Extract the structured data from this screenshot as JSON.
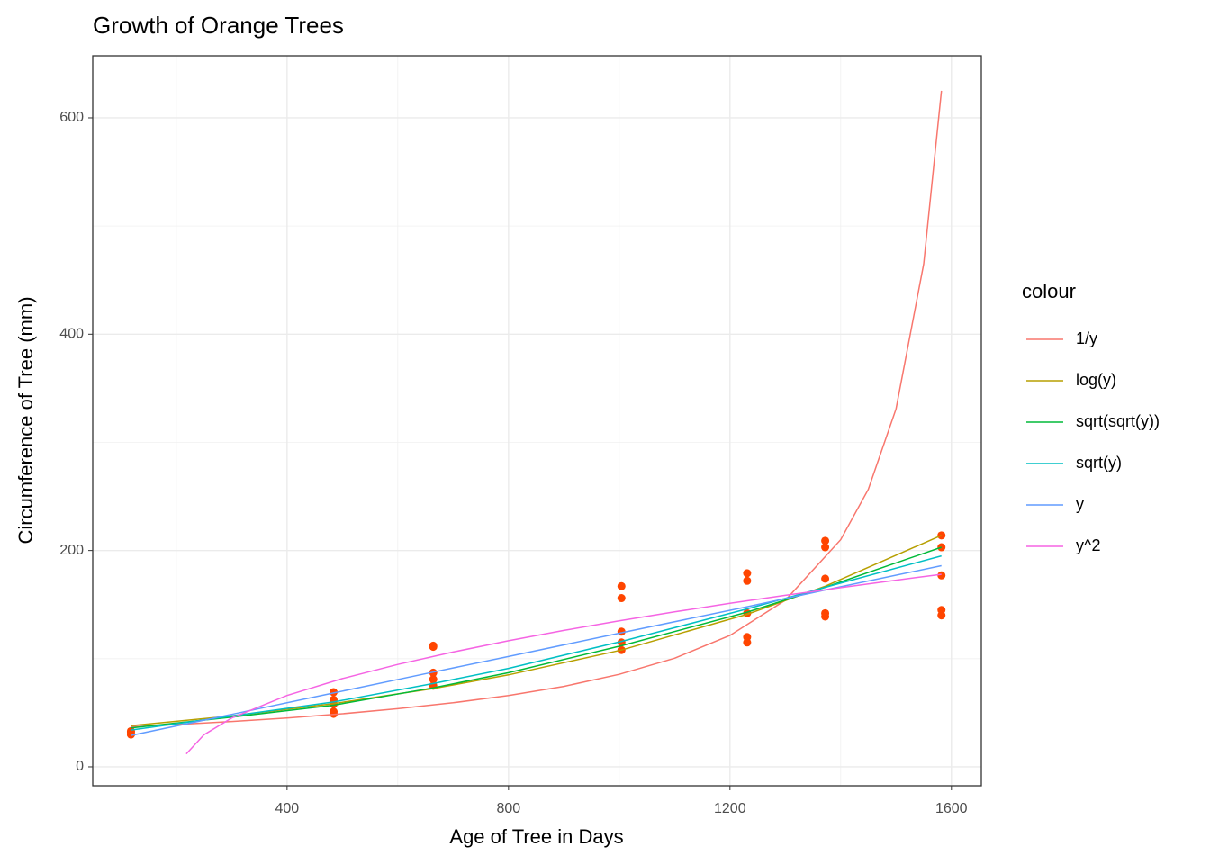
{
  "chart_data": {
    "type": "line",
    "title": "Growth of Orange Trees",
    "x_label": "Age of Tree in Days",
    "y_label": "Circumference of Tree (mm)",
    "xlim": [
      49,
      1654
    ],
    "ylim": [
      -17.5,
      657.4
    ],
    "xticks": [
      400,
      800,
      1200,
      1600
    ],
    "yticks": [
      0,
      200,
      400,
      600
    ],
    "xminor": [
      200,
      600,
      1000,
      1400
    ],
    "yminor": [
      100,
      300,
      500
    ],
    "grid": true,
    "legend_title": "colour",
    "legend_position": "right",
    "points": {
      "color": "#FF4500",
      "x": [
        118,
        484,
        664,
        1004,
        1231,
        1372,
        1582,
        118,
        484,
        664,
        1004,
        1231,
        1372,
        1582,
        118,
        484,
        664,
        1004,
        1231,
        1372,
        1582,
        118,
        484,
        664,
        1004,
        1231,
        1372,
        1582,
        118,
        484,
        664,
        1004,
        1231,
        1372,
        1582
      ],
      "y": [
        30,
        58,
        87,
        115,
        120,
        142,
        145,
        33,
        69,
        111,
        156,
        172,
        203,
        203,
        30,
        51,
        75,
        108,
        115,
        139,
        140,
        32,
        62,
        112,
        167,
        179,
        209,
        214,
        30,
        49,
        81,
        125,
        142,
        174,
        177
      ]
    },
    "series": [
      {
        "name": "1/y",
        "color": "#F8766D",
        "x": [
          118,
          200,
          300,
          400,
          500,
          600,
          700,
          800,
          900,
          1000,
          1100,
          1200,
          1300,
          1400,
          1450,
          1500,
          1550,
          1582
        ],
        "y": [
          37,
          39.1,
          41.9,
          45.2,
          49.1,
          53.7,
          59.2,
          65.9,
          74.4,
          85.5,
          100.4,
          121.5,
          154,
          210,
          256.6,
          331,
          465,
          625
        ]
      },
      {
        "name": "log(y)",
        "color": "#B79F00",
        "x": [
          118,
          300,
          484,
          664,
          800,
          1004,
          1231,
          1372,
          1582
        ],
        "y": [
          38,
          47.1,
          58.5,
          72.4,
          85,
          108,
          141,
          167,
          214
        ]
      },
      {
        "name": "sqrt(sqrt(y))",
        "color": "#00BA38",
        "x": [
          118,
          300,
          484,
          664,
          800,
          1004,
          1231,
          1372,
          1582
        ],
        "y": [
          36,
          46,
          57,
          73,
          87,
          112,
          143,
          166,
          203
        ]
      },
      {
        "name": "sqrt(y)",
        "color": "#00BFC4",
        "x": [
          118,
          300,
          484,
          664,
          800,
          1004,
          1231,
          1372,
          1582
        ],
        "y": [
          34,
          47,
          60,
          77,
          91,
          116,
          146,
          166,
          195
        ]
      },
      {
        "name": "y",
        "color": "#619CFF",
        "x": [
          118,
          300,
          484,
          664,
          800,
          1004,
          1231,
          1372,
          1582
        ],
        "y": [
          29,
          48.5,
          68.3,
          87.6,
          102,
          124,
          148,
          163.5,
          186
        ]
      },
      {
        "name": "y^2",
        "color": "#F564E3",
        "x": [
          218,
          250,
          300,
          400,
          500,
          600,
          700,
          800,
          900,
          1000,
          1100,
          1200,
          1300,
          1400,
          1500,
          1582
        ],
        "y": [
          12,
          29.7,
          45.2,
          66,
          81.6,
          94.7,
          106.2,
          116.6,
          126.1,
          135,
          143.3,
          151.2,
          158.6,
          165.7,
          172.6,
          178
        ]
      }
    ]
  }
}
